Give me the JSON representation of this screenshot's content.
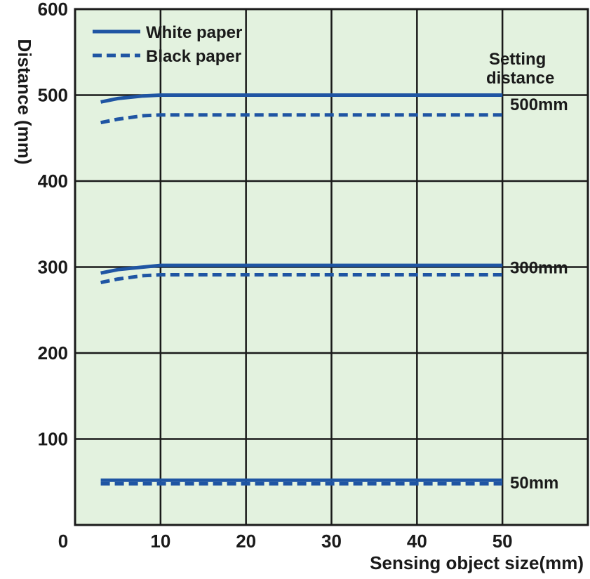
{
  "chart_data": {
    "type": "line",
    "title": "",
    "xlabel": "Sensing object size(mm)",
    "ylabel": "Distance (mm)",
    "xlim": [
      0,
      60
    ],
    "ylim": [
      0,
      600
    ],
    "x_ticks": [
      0,
      10,
      20,
      30,
      40,
      50
    ],
    "y_ticks": [
      100,
      200,
      300,
      400,
      500,
      600
    ],
    "grid": true,
    "legend_position": "top-left",
    "colors": {
      "background": "#e3f2df",
      "series": "#1f55a3",
      "grid": "#1a1a1a"
    },
    "legend": [
      {
        "label": "White paper",
        "style": "solid"
      },
      {
        "label": "Black paper",
        "style": "dashed"
      }
    ],
    "annotations": {
      "header_line1": "Setting",
      "header_line2": "distance",
      "labels": [
        {
          "text": "500mm",
          "y": 490
        },
        {
          "text": "300mm",
          "y": 300
        },
        {
          "text": "50mm",
          "y": 50
        }
      ]
    },
    "series": [
      {
        "paper": "White paper",
        "setting": "500mm",
        "style": "solid",
        "points": [
          [
            3,
            492
          ],
          [
            5,
            496
          ],
          [
            8,
            499
          ],
          [
            10,
            500
          ],
          [
            20,
            500
          ],
          [
            30,
            500
          ],
          [
            40,
            500
          ],
          [
            50,
            500
          ]
        ]
      },
      {
        "paper": "Black paper",
        "setting": "500mm",
        "style": "dashed",
        "points": [
          [
            3,
            468
          ],
          [
            5,
            472
          ],
          [
            8,
            476
          ],
          [
            10,
            477
          ],
          [
            20,
            477
          ],
          [
            30,
            477
          ],
          [
            40,
            477
          ],
          [
            50,
            477
          ]
        ]
      },
      {
        "paper": "White paper",
        "setting": "300mm",
        "style": "solid",
        "points": [
          [
            3,
            293
          ],
          [
            5,
            297
          ],
          [
            8,
            300
          ],
          [
            10,
            302
          ],
          [
            20,
            302
          ],
          [
            30,
            302
          ],
          [
            40,
            302
          ],
          [
            50,
            302
          ]
        ]
      },
      {
        "paper": "Black paper",
        "setting": "300mm",
        "style": "dashed",
        "points": [
          [
            3,
            282
          ],
          [
            5,
            286
          ],
          [
            8,
            290
          ],
          [
            10,
            291
          ],
          [
            20,
            291
          ],
          [
            30,
            291
          ],
          [
            40,
            291
          ],
          [
            50,
            291
          ]
        ]
      },
      {
        "paper": "White paper",
        "setting": "50mm",
        "style": "solid",
        "points": [
          [
            3,
            52
          ],
          [
            10,
            52
          ],
          [
            20,
            52
          ],
          [
            30,
            52
          ],
          [
            40,
            52
          ],
          [
            50,
            52
          ]
        ]
      },
      {
        "paper": "Black paper",
        "setting": "50mm",
        "style": "dashed",
        "points": [
          [
            3,
            48
          ],
          [
            10,
            48
          ],
          [
            20,
            48
          ],
          [
            30,
            48
          ],
          [
            40,
            48
          ],
          [
            50,
            48
          ]
        ]
      }
    ]
  }
}
